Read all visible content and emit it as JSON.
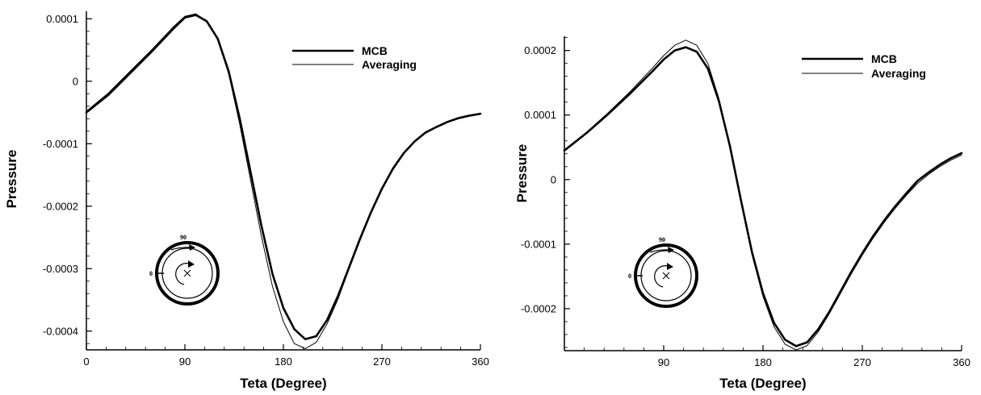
{
  "chart_data": [
    {
      "type": "line",
      "xlabel": "Teta (Degree)",
      "ylabel": "Pressure",
      "xlim": [
        0,
        360
      ],
      "ylim": [
        -0.00043,
        0.000112
      ],
      "x_ticks": [
        0,
        90,
        180,
        270,
        360
      ],
      "x_tick_labels": [
        "0",
        "90",
        "180",
        "270",
        "360"
      ],
      "y_ticks": [
        0.0001,
        0,
        -0.0001,
        -0.0002,
        -0.0003,
        -0.0004
      ],
      "y_tick_labels": [
        "0.0001",
        "0",
        "-0.0001",
        "-0.0002",
        "-0.0003",
        "-0.0004"
      ],
      "grid": false,
      "legend_position": "top-right",
      "inset_labels": [
        "90",
        "0"
      ],
      "series": [
        {
          "name": "MCB",
          "line_width": "thick",
          "x": [
            0,
            20,
            40,
            60,
            80,
            90,
            100,
            110,
            120,
            130,
            140,
            150,
            160,
            170,
            180,
            190,
            200,
            210,
            220,
            230,
            240,
            250,
            260,
            270,
            280,
            290,
            300,
            310,
            320,
            330,
            340,
            350,
            360
          ],
          "y": [
            -5e-05,
            -2.2e-05,
            1.3e-05,
            4.8e-05,
            8.5e-05,
            0.000102,
            0.000106,
            9.6e-05,
            6.8e-05,
            1.6e-05,
            -5.9e-05,
            -0.000145,
            -0.000232,
            -0.000308,
            -0.000363,
            -0.000397,
            -0.000413,
            -0.000408,
            -0.000382,
            -0.000343,
            -0.000298,
            -0.000252,
            -0.00021,
            -0.000172,
            -0.00014,
            -0.000115,
            -9.6e-05,
            -8.2e-05,
            -7.3e-05,
            -6.5e-05,
            -5.9e-05,
            -5.5e-05,
            -5.2e-05
          ]
        },
        {
          "name": "Averaging",
          "line_width": "thin",
          "x": [
            0,
            20,
            40,
            60,
            80,
            90,
            100,
            110,
            120,
            130,
            140,
            150,
            160,
            170,
            180,
            190,
            200,
            210,
            220,
            230,
            240,
            250,
            260,
            270,
            280,
            290,
            300,
            310,
            320,
            330,
            340,
            350,
            360
          ],
          "y": [
            -4.8e-05,
            -1.9e-05,
            1.6e-05,
            5.1e-05,
            8.8e-05,
            0.000104,
            0.000108,
            9.6e-05,
            6.6e-05,
            1.2e-05,
            -6.8e-05,
            -0.000158,
            -0.000249,
            -0.000328,
            -0.000385,
            -0.00042,
            -0.000428,
            -0.000418,
            -0.000388,
            -0.000348,
            -0.000301,
            -0.000255,
            -0.000212,
            -0.000174,
            -0.000142,
            -0.000116,
            -9.7e-05,
            -8.3e-05,
            -7.4e-05,
            -6.6e-05,
            -6e-05,
            -5.6e-05,
            -5.3e-05
          ]
        }
      ]
    },
    {
      "type": "line",
      "xlabel": "Teta (Degree)",
      "ylabel": "Pressure",
      "xlim": [
        0,
        360
      ],
      "ylim": [
        -0.000265,
        0.000222
      ],
      "x_ticks": [
        90,
        180,
        270,
        360
      ],
      "x_tick_labels": [
        "90",
        "180",
        "270",
        "360"
      ],
      "y_ticks": [
        0.0002,
        0.0001,
        0,
        -0.0001,
        -0.0002
      ],
      "y_tick_labels": [
        "0.0002",
        "0.0001",
        "0",
        "-0.0001",
        "-0.0002"
      ],
      "grid": false,
      "legend_position": "top-right",
      "inset_labels": [
        "90",
        "0"
      ],
      "series": [
        {
          "name": "MCB",
          "line_width": "thick",
          "x": [
            0,
            20,
            40,
            60,
            80,
            90,
            100,
            110,
            120,
            130,
            140,
            150,
            160,
            170,
            180,
            190,
            200,
            210,
            220,
            230,
            240,
            250,
            260,
            270,
            280,
            290,
            300,
            310,
            320,
            330,
            340,
            350,
            360
          ],
          "y": [
            4.5e-05,
            7.2e-05,
            0.000102,
            0.000134,
            0.000168,
            0.000186,
            0.0002,
            0.000205,
            0.000198,
            0.000172,
            0.000122,
            5.2e-05,
            -3.2e-05,
            -0.000112,
            -0.000176,
            -0.000222,
            -0.000248,
            -0.000258,
            -0.000252,
            -0.000232,
            -0.000205,
            -0.000174,
            -0.000143,
            -0.000114,
            -8.7e-05,
            -6.3e-05,
            -4.1e-05,
            -2.1e-05,
            -2e-06,
            1.1e-05,
            2.3e-05,
            3.3e-05,
            4.1e-05
          ]
        },
        {
          "name": "Averaging",
          "line_width": "thin",
          "x": [
            0,
            20,
            40,
            60,
            80,
            90,
            100,
            110,
            120,
            130,
            140,
            150,
            160,
            170,
            180,
            190,
            200,
            210,
            220,
            230,
            240,
            250,
            260,
            270,
            280,
            290,
            300,
            310,
            320,
            330,
            340,
            350,
            360
          ],
          "y": [
            4.6e-05,
            7.3e-05,
            0.000104,
            0.000137,
            0.000173,
            0.000192,
            0.000208,
            0.000216,
            0.000208,
            0.00018,
            0.000126,
            5.2e-05,
            -3.4e-05,
            -0.000116,
            -0.000181,
            -0.000228,
            -0.000255,
            -0.000264,
            -0.000257,
            -0.000236,
            -0.000208,
            -0.000177,
            -0.000146,
            -0.000117,
            -9e-05,
            -6.6e-05,
            -4.4e-05,
            -2.4e-05,
            -6e-06,
            8e-06,
            2e-05,
            3e-05,
            3.8e-05
          ]
        }
      ]
    }
  ]
}
